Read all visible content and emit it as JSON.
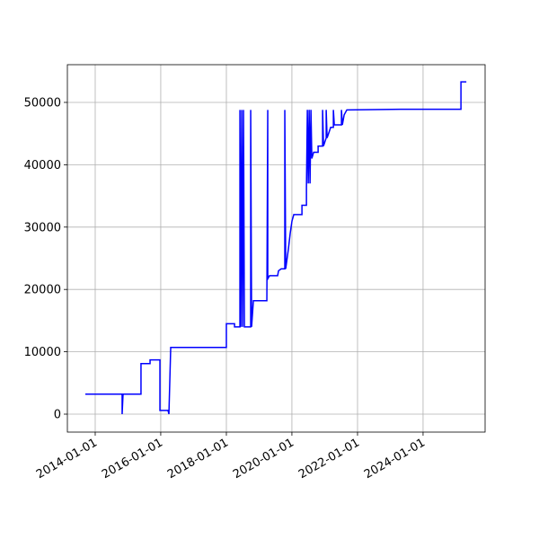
{
  "chart_data": {
    "type": "line",
    "x": [
      "2013-09-13",
      "2014-10-28",
      "2014-10-28",
      "2014-11-07",
      "2015-05-26",
      "2015-05-26",
      "2015-09-04",
      "2015-09-04",
      "2015-12-23",
      "2015-12-23",
      "2016-03-22",
      "2016-04-01",
      "2016-04-21",
      "2018-01-01",
      "2018-01-01",
      "2018-04-02",
      "2018-04-02",
      "2018-06-01",
      "2018-06-01",
      "2018-06-11",
      "2018-06-21",
      "2018-07-01",
      "2018-07-11",
      "2018-07-21",
      "2018-09-29",
      "2018-09-29",
      "2018-10-09",
      "2018-10-29",
      "2019-03-28",
      "2019-04-07",
      "2019-04-07",
      "2019-04-27",
      "2019-07-26",
      "2019-08-05",
      "2019-09-04",
      "2019-10-14",
      "2019-10-14",
      "2019-10-24",
      "2019-11-23",
      "2019-12-13",
      "2020-01-02",
      "2020-01-22",
      "2020-04-22",
      "2020-04-22",
      "2020-06-11",
      "2020-06-11",
      "2020-06-21",
      "2020-07-01",
      "2020-07-11",
      "2020-07-21",
      "2020-07-31",
      "2020-08-10",
      "2020-08-30",
      "2020-10-19",
      "2020-10-19",
      "2020-12-08",
      "2020-12-08",
      "2020-12-18",
      "2021-01-17",
      "2021-01-17",
      "2021-01-27",
      "2021-03-08",
      "2021-04-07",
      "2021-04-07",
      "2021-04-17",
      "2021-07-06",
      "2021-07-06",
      "2021-07-16",
      "2021-08-05",
      "2021-09-04",
      "2023-04-24",
      "2025-02-26",
      "2025-02-26",
      "2025-04-27"
    ],
    "series": [
      {
        "color": "#0000ff",
        "values": [
          3200,
          3200,
          0,
          3200,
          3200,
          8100,
          8100,
          8700,
          8700,
          600,
          600,
          0,
          10700,
          10700,
          14500,
          14500,
          14000,
          14000,
          48800,
          14000,
          48800,
          14000,
          48800,
          14000,
          14000,
          48800,
          14000,
          18200,
          18200,
          48800,
          21700,
          22200,
          22200,
          23000,
          23300,
          23300,
          48800,
          23300,
          26500,
          29000,
          31000,
          32000,
          32000,
          33500,
          33500,
          36200,
          48800,
          37000,
          48800,
          37000,
          48800,
          41000,
          42000,
          42000,
          43000,
          43000,
          48800,
          43000,
          44300,
          48800,
          44300,
          46000,
          46000,
          48800,
          46400,
          46400,
          48800,
          46400,
          48000,
          48800,
          48900,
          48900,
          53300,
          53300
        ]
      }
    ],
    "xlim": [
      "2013-02-25",
      "2025-11-22"
    ],
    "xticks": [
      "2014-01-01",
      "2016-01-01",
      "2018-01-01",
      "2020-01-01",
      "2022-01-01",
      "2024-01-01"
    ],
    "ylim": [
      -2880,
      56050
    ],
    "yticks": [
      0,
      10000,
      20000,
      30000,
      40000,
      50000
    ],
    "grid": true
  }
}
